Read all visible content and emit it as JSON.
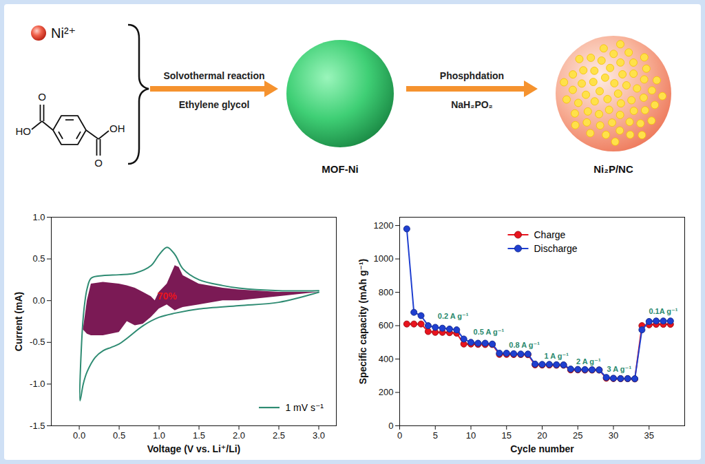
{
  "diagram": {
    "ion": "Ni²⁺",
    "molecule": {
      "left": [
        "O",
        "HO"
      ],
      "right": [
        "OH",
        "O"
      ]
    },
    "steps": [
      {
        "above": "Solvothermal reaction",
        "below": "Ethylene glycol"
      },
      {
        "above": "Phosphdation",
        "below": "NaH₂PO₂"
      }
    ],
    "products": [
      "MOF-Ni",
      "Ni₂P/NC"
    ]
  },
  "chart_data": [
    {
      "type": "line",
      "x_label": "Voltage (V vs. Li⁺/Li)",
      "y_label": "Current (mA)",
      "xlim": [
        -0.35,
        3.22
      ],
      "ylim": [
        -1.5,
        1.0
      ],
      "xticks": [
        {
          "value": 0,
          "label": "0.0"
        },
        0.5,
        {
          "value": 1,
          "label": "1.0"
        },
        1.5,
        {
          "value": 2,
          "label": "2.0"
        },
        2.5,
        {
          "value": 3,
          "label": "3.0"
        }
      ],
      "yticks": [
        -1.5,
        {
          "value": -1,
          "label": "-1.0"
        },
        -0.5,
        {
          "value": 0,
          "label": "0.0"
        },
        0.5,
        {
          "value": 1,
          "label": "1.0"
        }
      ],
      "grid": false,
      "legend": "bottom-right",
      "series": [
        {
          "name": "1 mV s⁻¹",
          "type": "line",
          "color": "#2e8b72",
          "x": [
            3.0,
            2.5,
            2.0,
            1.5,
            1.2,
            1.0,
            0.8,
            0.6,
            0.5,
            0.4,
            0.3,
            0.2,
            0.1,
            0.05,
            0.01,
            0.03,
            0.06,
            0.1,
            0.15,
            0.3,
            0.5,
            0.7,
            0.9,
            1.0,
            1.1,
            1.2,
            1.3,
            1.5,
            1.8,
            2.0,
            2.5,
            3.0
          ],
          "values": [
            0.1,
            -0.02,
            -0.06,
            -0.1,
            -0.15,
            -0.2,
            -0.3,
            -0.45,
            -0.52,
            -0.56,
            -0.6,
            -0.68,
            -0.85,
            -1.0,
            -1.2,
            -0.5,
            -0.1,
            0.15,
            0.27,
            0.3,
            0.31,
            0.33,
            0.42,
            0.55,
            0.64,
            0.55,
            0.38,
            0.25,
            0.18,
            0.15,
            0.12,
            0.12
          ]
        },
        {
          "type": "area",
          "color": "#7b1a55",
          "x": [
            0.05,
            0.1,
            0.15,
            0.3,
            0.5,
            0.6,
            0.7,
            0.8,
            0.9,
            0.95,
            1.0,
            1.1,
            1.2,
            1.25,
            1.3,
            1.5,
            1.8,
            2.0,
            2.5,
            3.0
          ],
          "upper": [
            -0.35,
            0.0,
            0.2,
            0.22,
            0.2,
            0.18,
            0.15,
            0.1,
            0.05,
            0.0,
            0.1,
            0.2,
            0.42,
            0.4,
            0.3,
            0.2,
            0.15,
            0.13,
            0.1,
            0.1
          ],
          "lower": [
            -0.35,
            -0.4,
            -0.42,
            -0.42,
            -0.38,
            -0.25,
            -0.3,
            -0.28,
            -0.2,
            -0.15,
            -0.1,
            -0.05,
            -0.12,
            -0.1,
            -0.08,
            -0.05,
            0.0,
            0.0,
            0.05,
            0.1
          ]
        }
      ],
      "annotations": [
        {
          "text": "70%",
          "x": 1.1,
          "y": 0.05,
          "color": "#e8141e"
        }
      ]
    },
    {
      "type": "line",
      "x_label": "Cycle number",
      "y_label": "Specific capacity (mAh g⁻¹)",
      "xlim": [
        0,
        40
      ],
      "ylim": [
        0,
        1250
      ],
      "xticks": [
        0,
        5,
        10,
        15,
        20,
        25,
        30,
        35
      ],
      "yticks": [
        0,
        200,
        400,
        600,
        800,
        1000,
        1200
      ],
      "grid": false,
      "legend": "top",
      "marker": "circle",
      "x": [
        1,
        2,
        3,
        4,
        5,
        6,
        7,
        8,
        9,
        10,
        11,
        12,
        13,
        14,
        15,
        16,
        17,
        18,
        19,
        20,
        21,
        22,
        23,
        24,
        25,
        26,
        27,
        28,
        29,
        30,
        31,
        32,
        33,
        34,
        35,
        36,
        37,
        38
      ],
      "series": [
        {
          "name": "Charge",
          "color": "#e8141e",
          "values": [
            610,
            610,
            610,
            565,
            560,
            560,
            558,
            555,
            490,
            490,
            488,
            487,
            487,
            428,
            428,
            427,
            427,
            426,
            365,
            364,
            364,
            363,
            363,
            335,
            335,
            334,
            334,
            334,
            285,
            283,
            282,
            282,
            281,
            600,
            605,
            608,
            608,
            608
          ]
        },
        {
          "name": "Discharge",
          "color": "#1f3fd0",
          "values": [
            1180,
            680,
            660,
            600,
            590,
            585,
            580,
            575,
            520,
            500,
            495,
            495,
            490,
            435,
            435,
            432,
            430,
            430,
            370,
            368,
            368,
            366,
            365,
            340,
            338,
            337,
            336,
            335,
            290,
            285,
            283,
            283,
            282,
            575,
            625,
            628,
            628,
            628
          ]
        }
      ],
      "annotations": [
        {
          "text": "0.2 A g⁻¹",
          "x": 7.5,
          "y": 655,
          "color": "#2a8a6e"
        },
        {
          "text": "0.5 A g⁻¹",
          "x": 12.5,
          "y": 560,
          "color": "#2a8a6e"
        },
        {
          "text": "0.8 A g⁻¹",
          "x": 17.5,
          "y": 482,
          "color": "#2a8a6e"
        },
        {
          "text": "1 A g⁻¹",
          "x": 22,
          "y": 415,
          "color": "#2a8a6e"
        },
        {
          "text": "2 A g⁻¹",
          "x": 26.5,
          "y": 385,
          "color": "#2a8a6e"
        },
        {
          "text": "3 A g⁻¹",
          "x": 30.8,
          "y": 340,
          "color": "#2a8a6e"
        },
        {
          "text": "0.1A g⁻¹",
          "x": 37,
          "y": 685,
          "color": "#2a8a6e"
        }
      ]
    }
  ]
}
